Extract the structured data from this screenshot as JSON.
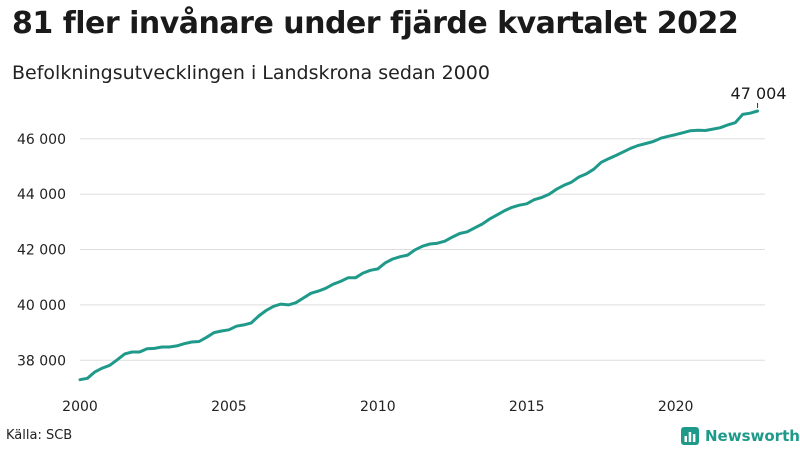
{
  "header": {
    "title": "81 fler invånare under fjärde kvartalet 2022",
    "subtitle": "Befolkningsutvecklingen i Landskrona sedan 2000"
  },
  "footer": {
    "source": "Källa: SCB",
    "brand": "Newsworthy",
    "brand_icon": "bar-chart-icon"
  },
  "colors": {
    "line": "#1f9a8a",
    "grid": "#dddddd",
    "brand": "#1f9a8a"
  },
  "chart_data": {
    "type": "line",
    "title": "81 fler invånare under fjärde kvartalet 2022",
    "subtitle": "Befolkningsutvecklingen i Landskrona sedan 2000",
    "xlim": [
      2000,
      2023
    ],
    "ylim": [
      37000,
      47400
    ],
    "x_ticks": [
      2000,
      2005,
      2010,
      2015,
      2020
    ],
    "x_tick_labels": [
      "2000",
      "2005",
      "2010",
      "2015",
      "2020"
    ],
    "y_ticks": [
      38000,
      40000,
      42000,
      44000,
      46000
    ],
    "y_tick_labels": [
      "38 000",
      "40 000",
      "42 000",
      "44 000",
      "46 000"
    ],
    "grid": "horizontal",
    "end_label": "47 004",
    "series": [
      {
        "values": [
          [
            2000.0,
            37300
          ],
          [
            2000.25,
            37350
          ],
          [
            2000.5,
            37580
          ],
          [
            2000.75,
            37720
          ],
          [
            2001.0,
            37820
          ],
          [
            2001.25,
            38020
          ],
          [
            2001.5,
            38230
          ],
          [
            2001.75,
            38300
          ],
          [
            2002.0,
            38300
          ],
          [
            2002.25,
            38420
          ],
          [
            2002.5,
            38430
          ],
          [
            2002.75,
            38480
          ],
          [
            2003.0,
            38480
          ],
          [
            2003.25,
            38520
          ],
          [
            2003.5,
            38600
          ],
          [
            2003.75,
            38660
          ],
          [
            2004.0,
            38680
          ],
          [
            2004.25,
            38830
          ],
          [
            2004.5,
            39000
          ],
          [
            2004.75,
            39060
          ],
          [
            2005.0,
            39100
          ],
          [
            2005.25,
            39230
          ],
          [
            2005.5,
            39280
          ],
          [
            2005.75,
            39350
          ],
          [
            2006.0,
            39600
          ],
          [
            2006.25,
            39800
          ],
          [
            2006.5,
            39950
          ],
          [
            2006.75,
            40030
          ],
          [
            2007.0,
            40000
          ],
          [
            2007.25,
            40080
          ],
          [
            2007.5,
            40250
          ],
          [
            2007.75,
            40420
          ],
          [
            2008.0,
            40500
          ],
          [
            2008.25,
            40600
          ],
          [
            2008.5,
            40750
          ],
          [
            2008.75,
            40850
          ],
          [
            2009.0,
            40980
          ],
          [
            2009.25,
            40980
          ],
          [
            2009.5,
            41150
          ],
          [
            2009.75,
            41250
          ],
          [
            2010.0,
            41300
          ],
          [
            2010.25,
            41520
          ],
          [
            2010.5,
            41660
          ],
          [
            2010.75,
            41740
          ],
          [
            2011.0,
            41800
          ],
          [
            2011.25,
            41990
          ],
          [
            2011.5,
            42120
          ],
          [
            2011.75,
            42200
          ],
          [
            2012.0,
            42230
          ],
          [
            2012.25,
            42300
          ],
          [
            2012.5,
            42450
          ],
          [
            2012.75,
            42580
          ],
          [
            2013.0,
            42640
          ],
          [
            2013.25,
            42780
          ],
          [
            2013.5,
            42920
          ],
          [
            2013.75,
            43100
          ],
          [
            2014.0,
            43250
          ],
          [
            2014.25,
            43400
          ],
          [
            2014.5,
            43520
          ],
          [
            2014.75,
            43600
          ],
          [
            2015.0,
            43650
          ],
          [
            2015.25,
            43800
          ],
          [
            2015.5,
            43880
          ],
          [
            2015.75,
            44000
          ],
          [
            2016.0,
            44180
          ],
          [
            2016.25,
            44320
          ],
          [
            2016.5,
            44430
          ],
          [
            2016.75,
            44620
          ],
          [
            2017.0,
            44730
          ],
          [
            2017.25,
            44900
          ],
          [
            2017.5,
            45150
          ],
          [
            2017.75,
            45280
          ],
          [
            2018.0,
            45400
          ],
          [
            2018.25,
            45530
          ],
          [
            2018.5,
            45660
          ],
          [
            2018.75,
            45760
          ],
          [
            2019.0,
            45830
          ],
          [
            2019.25,
            45900
          ],
          [
            2019.5,
            46020
          ],
          [
            2019.75,
            46090
          ],
          [
            2020.0,
            46150
          ],
          [
            2020.25,
            46220
          ],
          [
            2020.5,
            46290
          ],
          [
            2020.75,
            46310
          ],
          [
            2021.0,
            46300
          ],
          [
            2021.25,
            46350
          ],
          [
            2021.5,
            46400
          ],
          [
            2021.75,
            46500
          ],
          [
            2022.0,
            46580
          ],
          [
            2022.25,
            46880
          ],
          [
            2022.5,
            46923
          ],
          [
            2022.75,
            47004
          ]
        ]
      }
    ]
  }
}
